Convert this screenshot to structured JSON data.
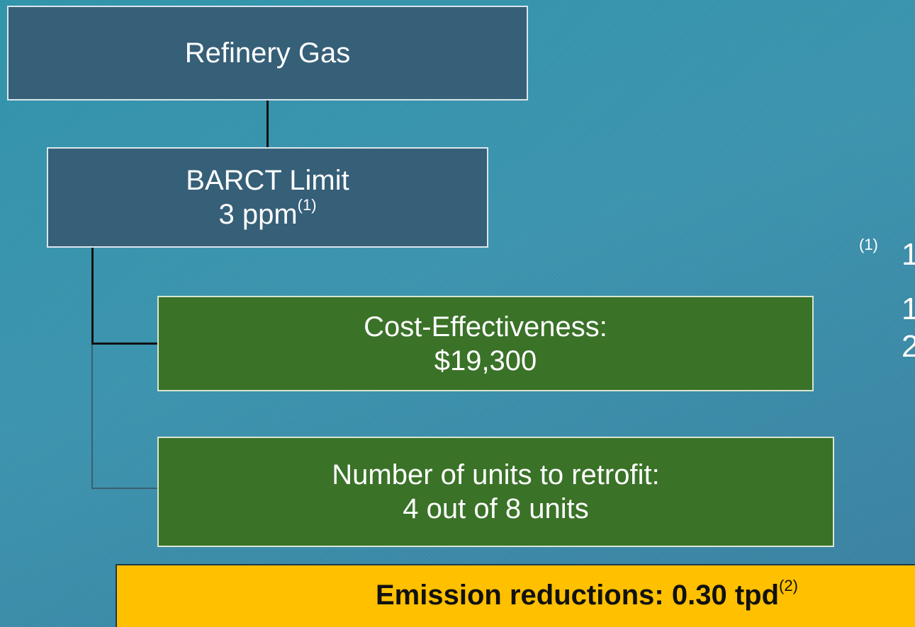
{
  "nodes": [
    {
      "label": "Refinery Gas"
    },
    {
      "label": "BARCT Limit",
      "value": "3 ppm",
      "note": "(1)"
    },
    {
      "label": "Cost-Effectiveness:",
      "value": "$19,300"
    },
    {
      "label": "Number of units to retrofit:",
      "value": "4 out of 8 units"
    },
    {
      "label": "Emission reductions: 0.30 tpd",
      "note": "(2)"
    }
  ],
  "footnotes": {
    "marker": "(1)",
    "lines": [
      "1",
      "1",
      "2"
    ]
  }
}
